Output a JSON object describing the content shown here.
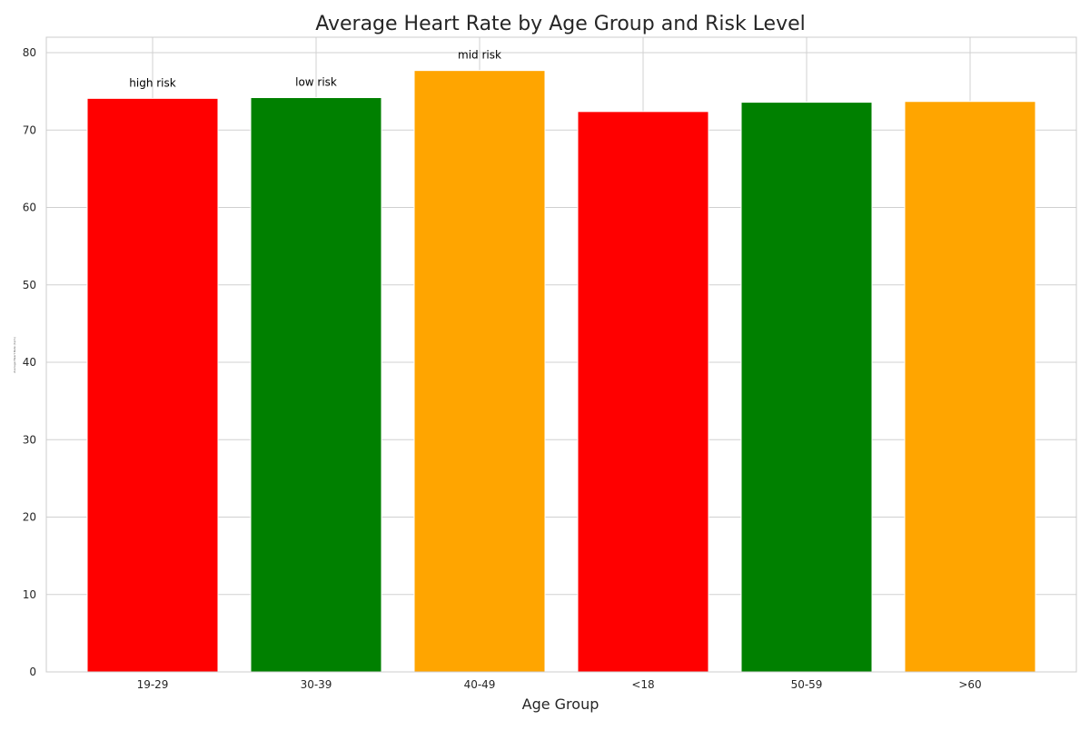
{
  "chart_data": {
    "type": "bar",
    "title": "Average Heart Rate by Age Group and Risk Level",
    "xlabel": "Age Group",
    "ylabel": "Average Heart Rate (bpm)",
    "categories": [
      "19-29",
      "30-39",
      "40-49",
      "<18",
      "50-59",
      ">60"
    ],
    "values": [
      74.1,
      74.2,
      77.7,
      72.4,
      73.6,
      73.7
    ],
    "colors": [
      "#ff0000",
      "#008000",
      "#ffa500",
      "#ff0000",
      "#008000",
      "#ffa500"
    ],
    "annotations": [
      "high risk",
      "low risk",
      "mid risk",
      "",
      "",
      ""
    ],
    "ylim": [
      0,
      82
    ],
    "yticks": [
      0,
      10,
      20,
      30,
      40,
      50,
      60,
      70,
      80
    ],
    "grid": true,
    "legend": "none"
  }
}
